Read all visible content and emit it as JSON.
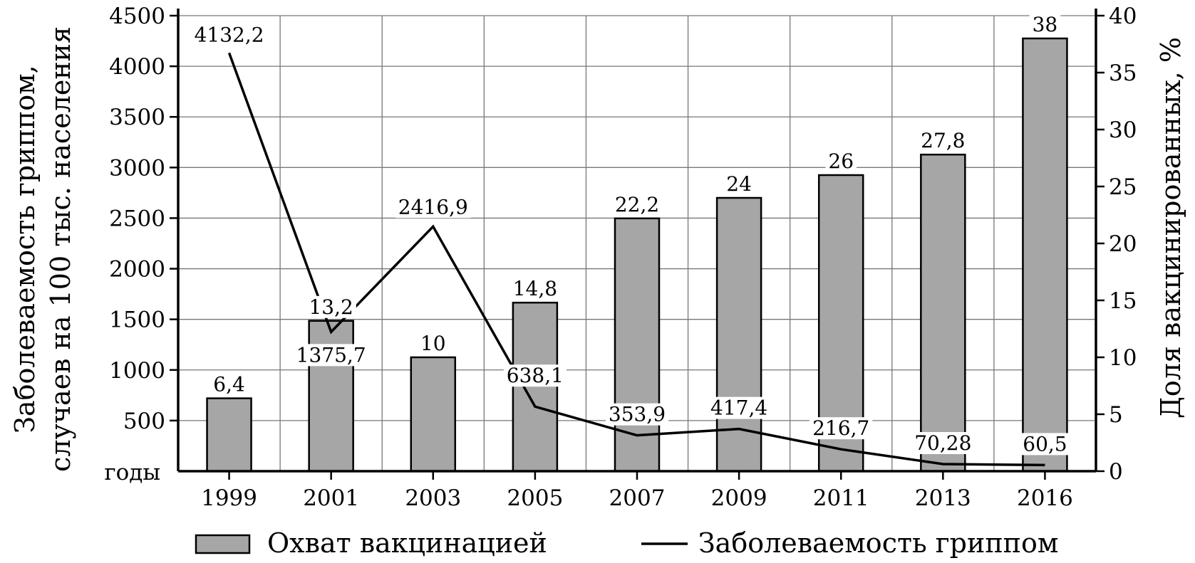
{
  "chart_data": {
    "type": "bar",
    "categories": [
      "1999",
      "2001",
      "2003",
      "2005",
      "2007",
      "2009",
      "2011",
      "2013",
      "2016"
    ],
    "x_unit_label": "годы",
    "series": [
      {
        "name": "Охват вакцинацией",
        "type": "bar",
        "axis": "right",
        "values": [
          6.4,
          13.2,
          10,
          14.8,
          22.2,
          24,
          26,
          27.8,
          38
        ],
        "labels": [
          "6,4",
          "13,2",
          "10",
          "14,8",
          "22,2",
          "24",
          "26",
          "27,8",
          "38"
        ]
      },
      {
        "name": "Заболеваемость гриппом",
        "type": "line",
        "axis": "left",
        "values": [
          4132.2,
          1375.7,
          2416.9,
          638.1,
          353.9,
          417.4,
          216.7,
          70.28,
          60.5
        ],
        "labels": [
          "4132,2",
          "1375,7",
          "2416,9",
          "638,1",
          "353,9",
          "417,4",
          "216,7",
          "70,28",
          "60,5"
        ]
      }
    ],
    "y_left": {
      "label_line1": "Заболеваемость гриппом,",
      "label_line2": "случаев на 100 тыс. населения",
      "ylim": [
        0,
        4500
      ],
      "ticks": [
        "500",
        "1000",
        "1500",
        "2000",
        "2500",
        "3000",
        "3500",
        "4000",
        "4500"
      ],
      "tick_values": [
        500,
        1000,
        1500,
        2000,
        2500,
        3000,
        3500,
        4000,
        4500
      ]
    },
    "y_right": {
      "label": "Доля вакцинированных, %",
      "ylim": [
        0,
        40
      ],
      "ticks": [
        "0",
        "5",
        "10",
        "15",
        "20",
        "25",
        "30",
        "35",
        "40"
      ],
      "tick_values": [
        0,
        5,
        10,
        15,
        20,
        25,
        30,
        35,
        40
      ]
    },
    "grid": true,
    "legend_position": "bottom",
    "colors": {
      "bar": "#a6a6a6",
      "bar_edge": "#000000",
      "line": "#000000",
      "grid": "#777777"
    }
  }
}
